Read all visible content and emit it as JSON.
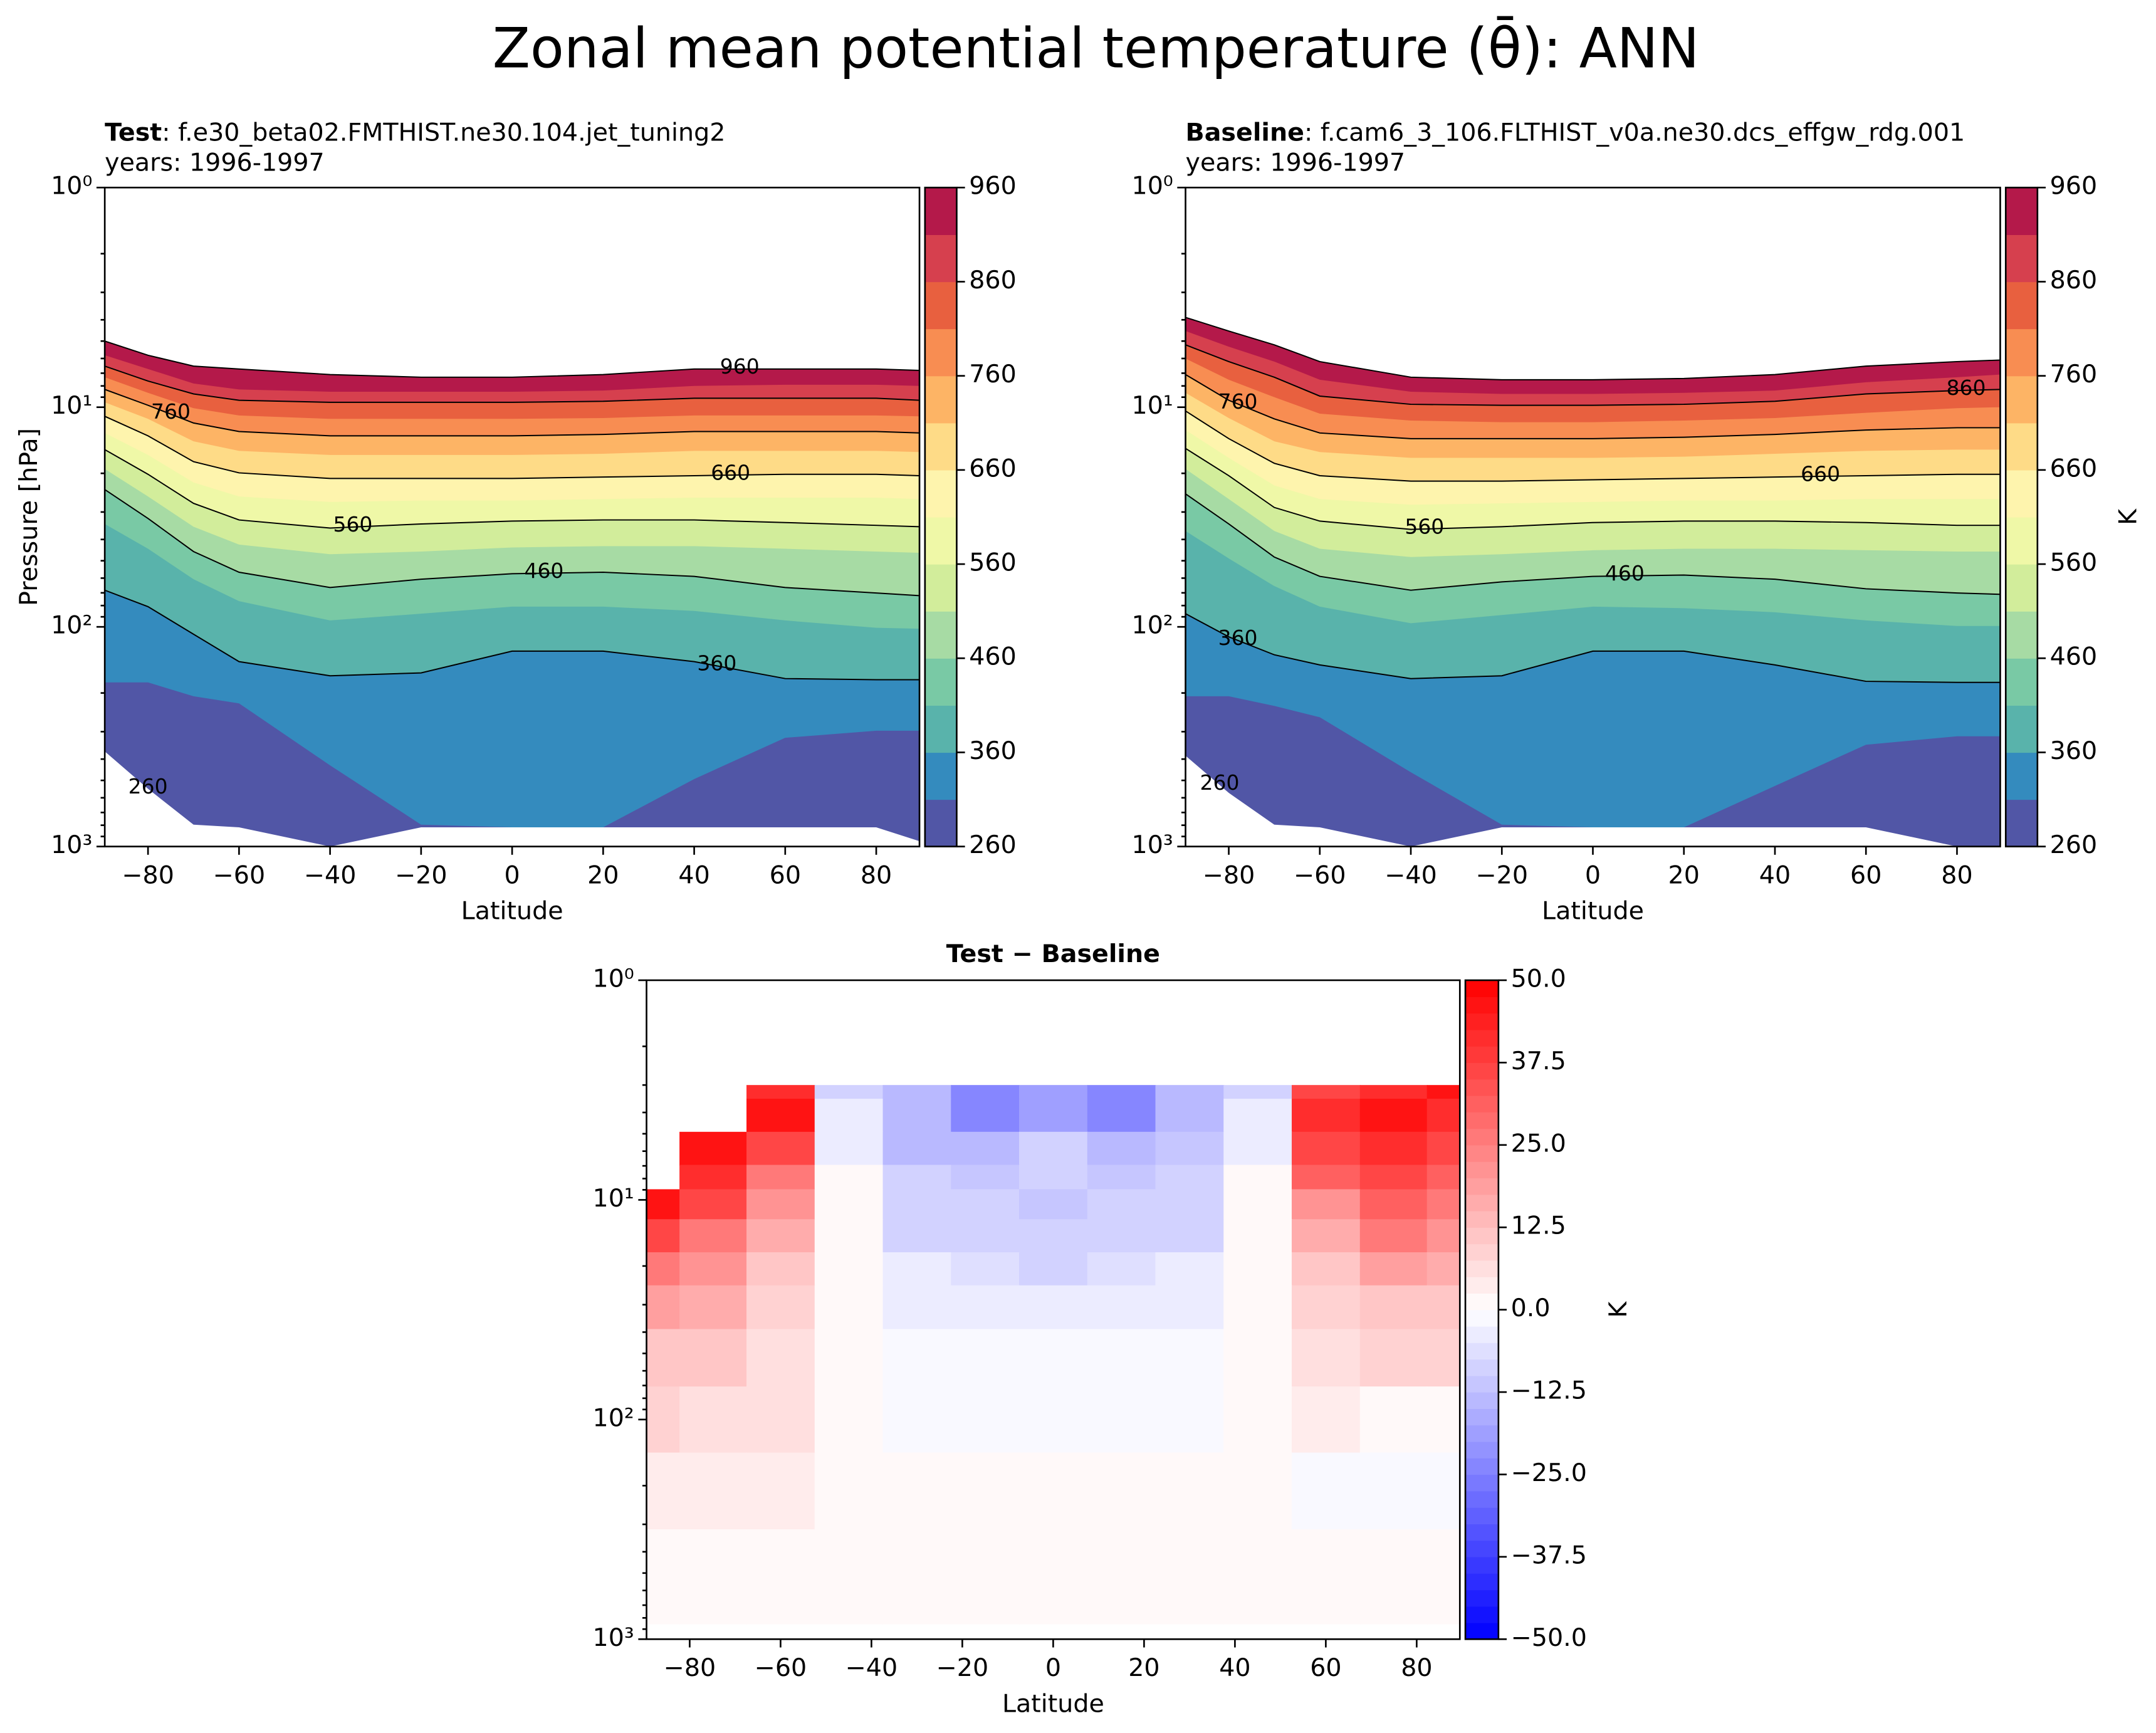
{
  "title": "Zonal mean potential temperature (θ̄): ANN",
  "chart_data": [
    {
      "type": "contour",
      "title_bold": "Test",
      "title_rest": ": f.e30_beta02.FMTHIST.ne30.104.jet_tuning2",
      "subtitle": "years: 1996-1997",
      "xlabel": "Latitude",
      "ylabel": "Pressure [hPa]",
      "xlim": [
        -89.5,
        89.5
      ],
      "ylim": [
        1000,
        1
      ],
      "yscale": "log",
      "xticks": [
        {
          "value": -80,
          "label": "−80"
        },
        {
          "value": -60,
          "label": "−60"
        },
        {
          "value": -40,
          "label": "−40"
        },
        {
          "value": -20,
          "label": "−20"
        },
        0,
        20,
        40,
        60,
        80
      ],
      "yticks": [
        {
          "value": 1,
          "label": "10⁰"
        },
        {
          "value": 10,
          "label": "10¹"
        },
        {
          "value": 100,
          "label": "10²"
        },
        {
          "value": 1000,
          "label": "10³"
        }
      ],
      "yminorticks": [
        2,
        3,
        4,
        5,
        6,
        7,
        8,
        9,
        20,
        30,
        40,
        50,
        60,
        70,
        80,
        90,
        200,
        300,
        400,
        500,
        600,
        700,
        800,
        900
      ],
      "x": [
        -89.5,
        -80,
        -70,
        -60,
        -40,
        -20,
        0,
        20,
        40,
        60,
        80,
        89.5
      ],
      "contours": [
        {
          "level": 260,
          "values": [
            369,
            546,
            795,
            818,
            1000,
            818,
            818,
            818,
            818,
            818,
            818,
            946
          ]
        },
        {
          "level": 310,
          "values": [
            179,
            179,
            207,
            223,
            427,
            795,
            818,
            818,
            493,
            320,
            297,
            297
          ]
        },
        {
          "level": 360,
          "values": [
            68.1,
            80.9,
            108,
            144,
            167,
            162,
            129,
            129,
            144,
            172,
            174,
            174
          ]
        },
        {
          "level": 410,
          "values": [
            34.0,
            44.1,
            60.7,
            76.4,
            93.5,
            87.1,
            80.9,
            80.9,
            84.6,
            93.5,
            101,
            102
          ]
        },
        {
          "level": 460,
          "values": [
            23.7,
            32.1,
            45.4,
            56.4,
            66.2,
            60.7,
            57.3,
            56.4,
            58.9,
            66.2,
            70.1,
            72.1
          ]
        },
        {
          "level": 510,
          "values": [
            19.1,
            25.5,
            35.0,
            42.2,
            46.7,
            45.4,
            43.5,
            42.9,
            42.9,
            44.1,
            45.4,
            46.0
          ]
        },
        {
          "level": 560,
          "values": [
            15.6,
            20.2,
            27.4,
            32.6,
            35.5,
            34.0,
            33.0,
            32.6,
            32.6,
            33.5,
            34.5,
            35.0
          ]
        },
        {
          "level": 610,
          "values": [
            13.1,
            16.5,
            22.0,
            25.5,
            27.0,
            26.6,
            26.6,
            26.2,
            25.8,
            25.8,
            25.8,
            26.2
          ]
        },
        {
          "level": 660,
          "values": [
            11.0,
            13.5,
            17.7,
            19.9,
            21.1,
            21.1,
            21.1,
            20.8,
            20.5,
            20.2,
            20.2,
            20.5
          ]
        },
        {
          "level": 710,
          "values": [
            9.5,
            11.3,
            14.3,
            15.8,
            16.5,
            16.5,
            16.5,
            16.3,
            15.8,
            15.8,
            15.8,
            16.0
          ]
        },
        {
          "level": 760,
          "values": [
            8.3,
            9.8,
            11.8,
            12.9,
            13.5,
            13.5,
            13.5,
            13.3,
            12.9,
            12.9,
            12.9,
            13.1
          ]
        },
        {
          "level": 810,
          "values": [
            7.3,
            8.6,
            10.1,
            10.9,
            11.3,
            11.3,
            11.3,
            11.2,
            10.9,
            10.9,
            10.9,
            11.0
          ]
        },
        {
          "level": 860,
          "values": [
            6.5,
            7.6,
            8.7,
            9.3,
            9.5,
            9.5,
            9.5,
            9.4,
            9.1,
            9.1,
            9.1,
            9.3
          ]
        },
        {
          "level": 910,
          "values": [
            5.8,
            6.7,
            7.8,
            8.3,
            8.5,
            8.5,
            8.5,
            8.4,
            8.0,
            7.9,
            7.9,
            8.0
          ]
        },
        {
          "level": 960,
          "values": [
            5.0,
            5.8,
            6.5,
            6.7,
            7.1,
            7.3,
            7.3,
            7.1,
            6.7,
            6.7,
            6.7,
            6.8
          ]
        }
      ],
      "colors": [
        "#5156a6",
        "#348bbe",
        "#59b3ab",
        "#79c9a5",
        "#a7dba4",
        "#d2ed9b",
        "#eff8a7",
        "#fef4ad",
        "#fedb87",
        "#fdb465",
        "#f88d52",
        "#e8603f",
        "#d6404e",
        "#b4194a"
      ],
      "contour_labels": [
        "960",
        "760",
        "660",
        "560",
        "460",
        "360",
        "260"
      ],
      "clim": [
        260,
        960
      ],
      "cticks": [
        260,
        360,
        460,
        560,
        660,
        760,
        860,
        960
      ]
    },
    {
      "type": "contour",
      "title_bold": "Baseline",
      "title_rest": ": f.cam6_3_106.FLTHIST_v0a.ne30.dcs_effgw_rdg.001",
      "subtitle": "years: 1996-1997",
      "xlabel": "Latitude",
      "xlim": [
        -89.5,
        89.5
      ],
      "ylim": [
        1000,
        1
      ],
      "yscale": "log",
      "xticks": [
        {
          "value": -80,
          "label": "−80"
        },
        {
          "value": -60,
          "label": "−60"
        },
        {
          "value": -40,
          "label": "−40"
        },
        {
          "value": -20,
          "label": "−20"
        },
        0,
        20,
        40,
        60,
        80
      ],
      "yticks": [
        {
          "value": 1,
          "label": "10⁰"
        },
        {
          "value": 10,
          "label": "10¹"
        },
        {
          "value": 100,
          "label": "10²"
        },
        {
          "value": 1000,
          "label": "10³"
        }
      ],
      "yminorticks": [
        2,
        3,
        4,
        5,
        6,
        7,
        8,
        9,
        20,
        30,
        40,
        50,
        60,
        70,
        80,
        90,
        200,
        300,
        400,
        500,
        600,
        700,
        800,
        900
      ],
      "x": [
        -89.5,
        -80,
        -70,
        -60,
        -40,
        -20,
        0,
        20,
        40,
        60,
        80,
        89.5
      ],
      "contours": [
        {
          "level": 260,
          "values": [
            386,
            570,
            795,
            818,
            1000,
            818,
            818,
            818,
            818,
            818,
            1000,
            1000
          ]
        },
        {
          "level": 310,
          "values": [
            207,
            207,
            229,
            258,
            459,
            795,
            818,
            818,
            530,
            344,
            315,
            315
          ]
        },
        {
          "level": 360,
          "values": [
            87.1,
            111,
            134,
            149,
            172,
            167,
            129,
            129,
            149,
            177,
            179,
            179
          ]
        },
        {
          "level": 410,
          "values": [
            36.6,
            48.8,
            65.2,
            80.9,
            96.3,
            88.3,
            80.9,
            82.2,
            85.8,
            93.5,
            99.1,
            99.1
          ]
        },
        {
          "level": 460,
          "values": [
            24.8,
            34.0,
            48.1,
            58.9,
            68.1,
            62.4,
            58.9,
            58.1,
            60.7,
            67.1,
            70.1,
            71.1
          ]
        },
        {
          "level": 510,
          "values": [
            19.1,
            26.2,
            36.6,
            44.1,
            48.1,
            46.7,
            44.8,
            44.1,
            44.1,
            44.8,
            45.4,
            45.4
          ]
        },
        {
          "level": 560,
          "values": [
            15.4,
            20.5,
            28.6,
            33.0,
            36.0,
            35.0,
            33.5,
            33.0,
            33.0,
            33.5,
            34.5,
            34.5
          ]
        },
        {
          "level": 610,
          "values": [
            12.7,
            17.0,
            22.7,
            26.2,
            27.8,
            27.4,
            27.0,
            26.6,
            26.6,
            26.2,
            26.2,
            26.2
          ]
        },
        {
          "level": 660,
          "values": [
            10.4,
            13.9,
            18.0,
            20.5,
            21.7,
            21.7,
            21.4,
            21.1,
            20.8,
            20.5,
            20.2,
            20.2
          ]
        },
        {
          "level": 710,
          "values": [
            8.6,
            11.2,
            14.3,
            16.0,
            17.0,
            17.0,
            17.0,
            16.8,
            16.3,
            15.8,
            15.6,
            15.6
          ]
        },
        {
          "level": 760,
          "values": [
            7.1,
            9.3,
            11.3,
            13.1,
            13.9,
            13.9,
            13.9,
            13.7,
            13.3,
            12.7,
            12.4,
            12.4
          ]
        },
        {
          "level": 810,
          "values": [
            6.0,
            7.5,
            9.0,
            10.7,
            11.5,
            11.7,
            11.7,
            11.5,
            11.2,
            10.6,
            10.1,
            10.0
          ]
        },
        {
          "level": 860,
          "values": [
            5.2,
            6.2,
            7.3,
            8.9,
            9.7,
            9.8,
            9.8,
            9.7,
            9.4,
            8.7,
            8.4,
            8.3
          ]
        },
        {
          "level": 910,
          "values": [
            4.5,
            5.3,
            6.2,
            7.5,
            8.5,
            8.7,
            8.7,
            8.6,
            8.4,
            7.7,
            7.3,
            7.1
          ]
        },
        {
          "level": 960,
          "values": [
            3.9,
            4.5,
            5.2,
            6.2,
            7.3,
            7.5,
            7.5,
            7.4,
            7.1,
            6.5,
            6.2,
            6.1
          ]
        }
      ],
      "colors": [
        "#5156a6",
        "#348bbe",
        "#59b3ab",
        "#79c9a5",
        "#a7dba4",
        "#d2ed9b",
        "#eff8a7",
        "#fef4ad",
        "#fedb87",
        "#fdb465",
        "#f88d52",
        "#e8603f",
        "#d6404e",
        "#b4194a"
      ],
      "contour_labels": [
        "760",
        "860",
        "660",
        "560",
        "460",
        "360",
        "260"
      ],
      "clim": [
        260,
        960
      ],
      "cticks": [
        260,
        360,
        460,
        560,
        660,
        760,
        860,
        960
      ],
      "clabel": "K"
    },
    {
      "type": "heatmap",
      "title": "Test − Baseline",
      "xlabel": "Latitude",
      "xlim": [
        -89.5,
        89.5
      ],
      "ylim": [
        1000,
        1
      ],
      "yscale": "log",
      "xticks": [
        {
          "value": -80,
          "label": "−80"
        },
        {
          "value": -60,
          "label": "−60"
        },
        {
          "value": -40,
          "label": "−40"
        },
        {
          "value": -20,
          "label": "−20"
        },
        0,
        20,
        40,
        60,
        80
      ],
      "yticks": [
        {
          "value": 1,
          "label": "10⁰"
        },
        {
          "value": 10,
          "label": "10¹"
        },
        {
          "value": 100,
          "label": "10²"
        },
        {
          "value": 1000,
          "label": "10³"
        }
      ],
      "yminorticks": [
        2,
        3,
        4,
        5,
        6,
        7,
        8,
        9,
        20,
        30,
        40,
        50,
        60,
        70,
        80,
        90,
        200,
        300,
        400,
        500,
        600,
        700,
        800,
        900
      ],
      "x": [
        -89.5,
        -75,
        -60,
        -45,
        -30,
        -15,
        0,
        15,
        30,
        45,
        60,
        75,
        89.5
      ],
      "y": [
        3,
        4,
        6,
        8,
        10,
        15,
        20,
        30,
        50,
        100,
        200,
        500,
        850
      ],
      "values": [
        [
          null,
          null,
          40,
          -10,
          -15,
          -25,
          -20,
          -25,
          -15,
          -10,
          35,
          40,
          45
        ],
        [
          null,
          null,
          45,
          -5,
          -15,
          -25,
          -20,
          -25,
          -15,
          -5,
          40,
          45,
          40
        ],
        [
          null,
          45,
          35,
          -5,
          -15,
          -15,
          -10,
          -15,
          -12,
          -5,
          35,
          40,
          35
        ],
        [
          null,
          40,
          25,
          0,
          -10,
          -12,
          -10,
          -12,
          -10,
          0,
          30,
          35,
          30
        ],
        [
          45,
          35,
          20,
          0,
          -10,
          -10,
          -12,
          -10,
          -10,
          0,
          20,
          30,
          25
        ],
        [
          35,
          25,
          15,
          2,
          -8,
          -8,
          -8,
          -8,
          -8,
          2,
          15,
          25,
          20
        ],
        [
          25,
          20,
          12,
          2,
          -5,
          -6,
          -8,
          -6,
          -5,
          2,
          12,
          18,
          15
        ],
        [
          18,
          15,
          8,
          2,
          -3,
          -3,
          -3,
          -3,
          -3,
          2,
          8,
          12,
          10
        ],
        [
          12,
          10,
          6,
          1,
          -2,
          -2,
          -1,
          -2,
          -2,
          1,
          5,
          8,
          8
        ],
        [
          8,
          7,
          5,
          2,
          -1,
          -1,
          -1,
          -1,
          -1,
          1,
          3,
          2,
          2
        ],
        [
          4,
          4,
          3,
          2,
          1,
          1,
          1,
          2,
          1,
          0,
          -1,
          -2,
          -1
        ],
        [
          2,
          2,
          2,
          2,
          1,
          1,
          1,
          1,
          1,
          1,
          1,
          1,
          1
        ],
        [
          1,
          1,
          1,
          1,
          1,
          1,
          1,
          1,
          1,
          1,
          1,
          1,
          1
        ]
      ],
      "clim": [
        -50,
        50
      ],
      "cticks": [
        {
          "value": -50,
          "label": "−50.0"
        },
        {
          "value": -37.5,
          "label": "−37.5"
        },
        {
          "value": -25,
          "label": "−25.0"
        },
        {
          "value": -12.5,
          "label": "−12.5"
        },
        {
          "value": 0,
          "label": "0.0"
        },
        {
          "value": 12.5,
          "label": "12.5"
        },
        {
          "value": 25,
          "label": "25.0"
        },
        {
          "value": 37.5,
          "label": "37.5"
        },
        {
          "value": 50,
          "label": "50.0"
        }
      ],
      "clabel": "K"
    }
  ]
}
